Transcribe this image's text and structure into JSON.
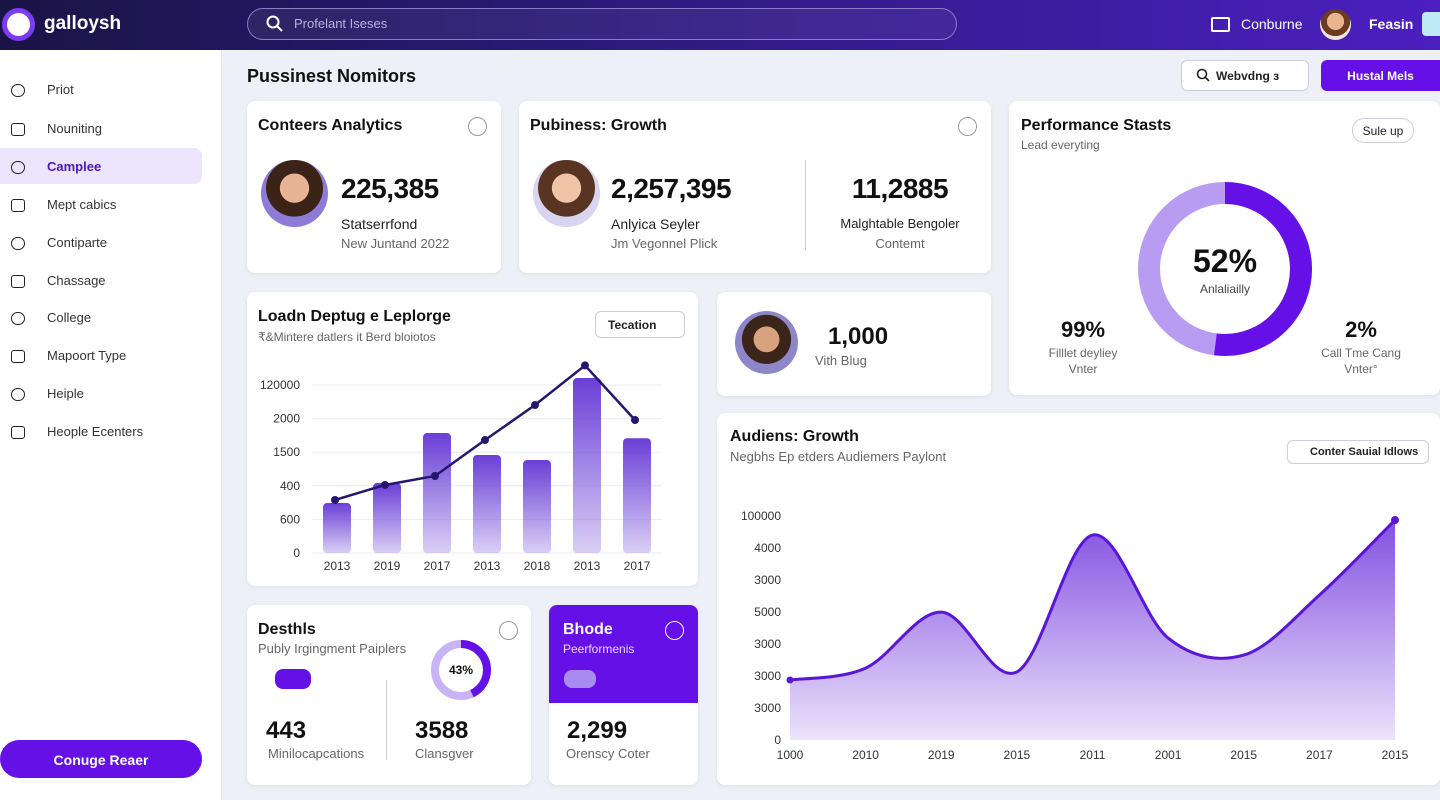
{
  "header": {
    "brand": "galloysh",
    "search": "Profelant Iseses",
    "link": "Conburne",
    "user": "Feasin"
  },
  "sidebar": {
    "items": [
      "Priot",
      "Nouniting",
      "Camplee",
      "Mept cabics",
      "Contiparte",
      "Chassage",
      "College",
      "Mapoort Type",
      "Heiple",
      "Heople Ecenters"
    ],
    "button": "Conuge Reaer"
  },
  "page": {
    "title": "Pussinest Nomitors",
    "dropdown": "Webvdng з",
    "button": "Hustal Mels"
  },
  "cards": {
    "content_analytics": {
      "title": "Conteers Analytics",
      "value": "225,385",
      "label": "Statserrfond",
      "sub": "New Juntand 2022"
    },
    "business_growth": {
      "title": "Pubiness: Growth",
      "primary": {
        "value": "2,257,395",
        "label": "Anlyica Seyler",
        "sub": "Jm Vegonnel Plick"
      },
      "secondary": {
        "value": "11,2885",
        "label": "Malghtable Bengoler",
        "sub": "Contemt"
      }
    },
    "performance": {
      "title": "Performance Stasts",
      "subtitle": "Lead everyting",
      "button": "Sule up",
      "chart": {
        "type": "donut",
        "value": 52,
        "value_label": "52%",
        "caption": "Anlaliailly",
        "color": "#6610e8",
        "rest_color": "#b89cf2"
      },
      "left": {
        "value": "99%",
        "label": "Filllet deyliey",
        "sub": "Vnter"
      },
      "right": {
        "value": "2%",
        "label": "Call Tme Cang",
        "sub": "Vnter°"
      }
    },
    "deployment": {
      "title": "Loadn Deptug e Leplorge",
      "subtitle": "₹&Mintere datlers it Berd bloiotos",
      "button": "Tecation",
      "chart": {
        "type": "bar_line",
        "categories": [
          "2013",
          "2019",
          "2017",
          "2013",
          "2018",
          "2013",
          "2017"
        ],
        "y_labels": [
          120000,
          2000,
          1500,
          400,
          600,
          0
        ],
        "ylim": [
          0,
          140000
        ],
        "bars": {
          "color": "#6a3fd6",
          "values": [
            35700,
            50000,
            85700,
            70000,
            66400,
            125000,
            82000
          ]
        },
        "line": {
          "color": "#251770",
          "values": [
            37900,
            48600,
            55000,
            80700,
            105700,
            134000,
            95000
          ]
        }
      }
    },
    "blog": {
      "value": "1,000",
      "label": "Vith Blug"
    },
    "audience": {
      "title": "Audiens: Growth",
      "subtitle": "Negbhs Ep etders Audiemers Paylont",
      "button": "Conter Sauial Idlows",
      "chart": {
        "type": "area",
        "categories": [
          "1000",
          "2010",
          "2019",
          "2015",
          "2011",
          "2001",
          "2015",
          "2017",
          "2015"
        ],
        "y_labels": [
          100000,
          4000,
          3000,
          5000,
          3000,
          3000,
          3000,
          0
        ],
        "ylim": [
          0,
          100000
        ],
        "color": "#5a16d8",
        "values": [
          26800,
          32100,
          57100,
          30400,
          91500,
          45500,
          37900,
          64700,
          98200
        ]
      }
    },
    "details": {
      "title": "Desthls",
      "subtitle": "Publy Irgingment Paiplers",
      "chart": {
        "type": "donut",
        "value": 43,
        "value_label": "43%",
        "color": "#6610e8",
        "rest_color": "#c8b4f5"
      },
      "left": {
        "value": "443",
        "label": "Minilocapcations"
      },
      "right": {
        "value": "3588",
        "label": "Clansgver"
      }
    },
    "bhode": {
      "title": "Bhode",
      "subtitle": "Peerformenis",
      "value": "2,299",
      "label": "Orenscy Coter"
    }
  }
}
